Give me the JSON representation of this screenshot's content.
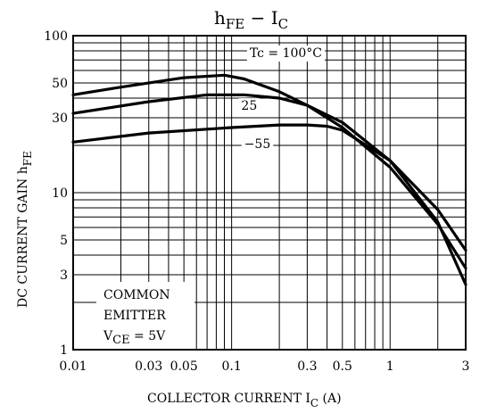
{
  "chart_data": {
    "type": "line",
    "title": {
      "main": "h",
      "main_sub": "FE",
      "sep": " − ",
      "var": "I",
      "var_sub": "C"
    },
    "xlabel": {
      "main": "COLLECTOR CURRENT",
      "var": "I",
      "var_sub": "C",
      "unit": "(A)"
    },
    "ylabel": {
      "main": "DC CURRENT GAIN",
      "var": "h",
      "var_sub": "FE"
    },
    "xscale": "log",
    "yscale": "log",
    "xlim": [
      0.01,
      3
    ],
    "ylim": [
      1,
      100
    ],
    "grid": true,
    "xticks": [
      {
        "v": 0.01,
        "label": "0.01"
      },
      {
        "v": 0.03,
        "label": "0.03"
      },
      {
        "v": 0.05,
        "label": "0.05"
      },
      {
        "v": 0.1,
        "label": "0.1"
      },
      {
        "v": 0.3,
        "label": "0.3"
      },
      {
        "v": 0.5,
        "label": "0.5"
      },
      {
        "v": 1,
        "label": "1"
      },
      {
        "v": 3,
        "label": "3"
      }
    ],
    "yticks": [
      {
        "v": 1,
        "label": "1"
      },
      {
        "v": 3,
        "label": "3"
      },
      {
        "v": 5,
        "label": "5"
      },
      {
        "v": 10,
        "label": "10"
      },
      {
        "v": 30,
        "label": "30"
      },
      {
        "v": 50,
        "label": "50"
      },
      {
        "v": 100,
        "label": "100"
      }
    ],
    "series": [
      {
        "name": "Tc = 100°C",
        "points": [
          [
            0.01,
            42
          ],
          [
            0.02,
            47
          ],
          [
            0.05,
            54
          ],
          [
            0.09,
            56
          ],
          [
            0.12,
            53
          ],
          [
            0.2,
            44
          ],
          [
            0.3,
            36
          ],
          [
            0.5,
            26
          ],
          [
            1,
            14.5
          ],
          [
            2,
            6.3
          ],
          [
            3,
            3.3
          ]
        ]
      },
      {
        "name": "25",
        "points": [
          [
            0.01,
            32
          ],
          [
            0.03,
            38
          ],
          [
            0.07,
            42
          ],
          [
            0.12,
            42
          ],
          [
            0.2,
            40
          ],
          [
            0.3,
            36
          ],
          [
            0.5,
            28
          ],
          [
            1,
            16
          ],
          [
            2,
            7.8
          ],
          [
            3,
            4.3
          ]
        ]
      },
      {
        "name": "−55",
        "points": [
          [
            0.01,
            21
          ],
          [
            0.03,
            24
          ],
          [
            0.1,
            26
          ],
          [
            0.2,
            27
          ],
          [
            0.3,
            27
          ],
          [
            0.4,
            26.5
          ],
          [
            0.5,
            25
          ],
          [
            1,
            16
          ],
          [
            2,
            6.5
          ],
          [
            3,
            2.6
          ]
        ]
      }
    ],
    "annotations": [
      {
        "text": "Tc = 100°C",
        "x": 0.13,
        "y": 78
      },
      {
        "text": "25",
        "x": 0.115,
        "y": 36
      },
      {
        "text": "−55",
        "x": 0.12,
        "y": 20.5
      }
    ],
    "legend_box": {
      "lines": [
        "COMMON",
        "EMITTER"
      ],
      "vce": {
        "var": "V",
        "sub": "CE",
        "rest": " = 5V"
      }
    }
  }
}
